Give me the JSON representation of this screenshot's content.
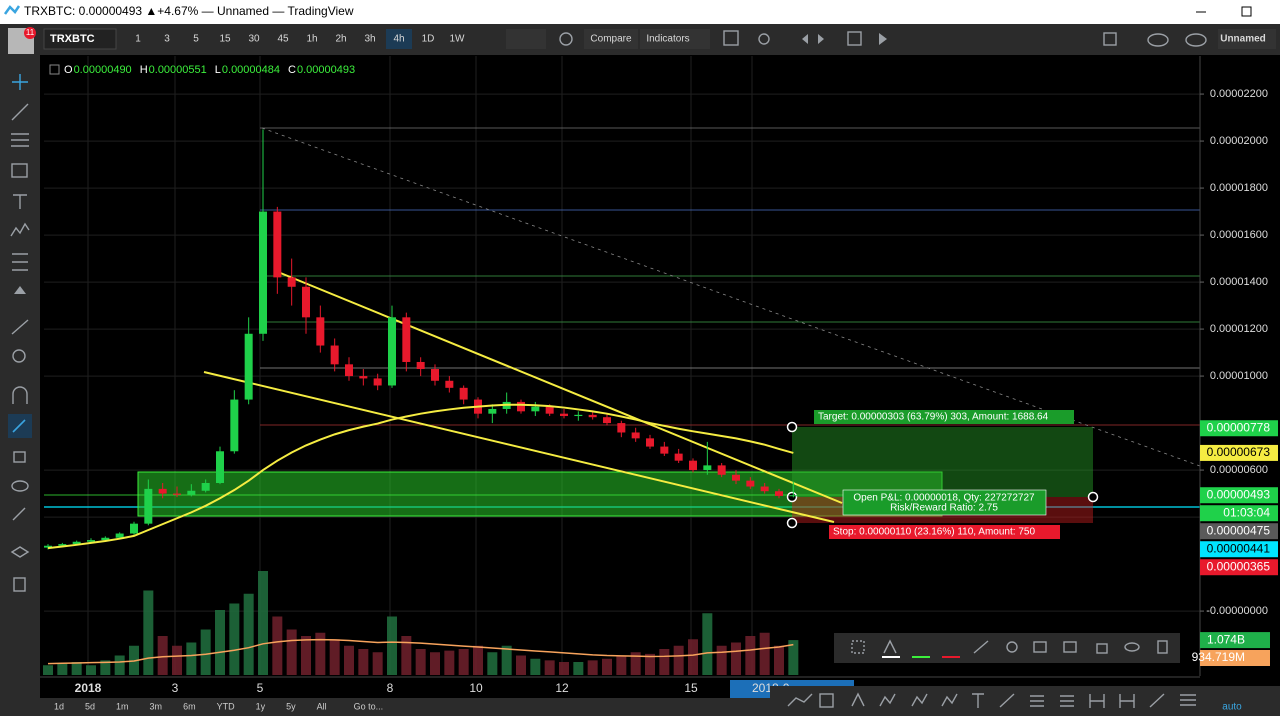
{
  "window": {
    "title": "TRXBTC: 0.00000493 ▲+4.67% — Unnamed — TradingView"
  },
  "toolbar": {
    "badge": "11",
    "symbol": "TRXBTC",
    "intervals": [
      "1",
      "3",
      "5",
      "15",
      "30",
      "45",
      "1h",
      "2h",
      "3h",
      "4h",
      "1D",
      "1W"
    ],
    "compare": "Compare",
    "indicators": "Indicators",
    "layout_name": "Unnamed"
  },
  "chart_data": {
    "type": "candlestick",
    "legend": [
      {
        "name": "O",
        "value": 4.9e-06,
        "label": "0.00000490"
      },
      {
        "name": "H",
        "value": 5.51e-06,
        "label": "0.00000551"
      },
      {
        "name": "L",
        "value": 4.84e-06,
        "label": "0.00000484"
      },
      {
        "name": "C",
        "value": 4.93e-06,
        "label": "0.00000493"
      }
    ],
    "up_color": "#1fd14a",
    "down_color": "#e8192c",
    "ylim": [
      -2.72e-06,
      2.362e-05
    ],
    "yticks": [
      {
        "value": 2.2e-05,
        "label": "0.00002200"
      },
      {
        "value": 2e-05,
        "label": "0.00002000"
      },
      {
        "value": 1.8e-05,
        "label": "0.00001800"
      },
      {
        "value": 1.6e-05,
        "label": "0.00001600"
      },
      {
        "value": 1.4e-05,
        "label": "0.00001400"
      },
      {
        "value": 1.2e-05,
        "label": "0.00001200"
      },
      {
        "value": 1e-05,
        "label": "0.00001000"
      },
      {
        "value": 6e-06,
        "label": "0.00000600"
      },
      {
        "value": 4e-06,
        "label": "0.0"
      },
      {
        "value": 0,
        "label": "-0.00000000"
      }
    ],
    "grid": true,
    "xticks": [
      "2018",
      "3",
      "5",
      "8",
      "10",
      "12",
      "15",
      "2018-0"
    ],
    "ohlc": [
      [
        2.7e-06,
        2.85e-06,
        2.62e-06,
        2.78e-06
      ],
      [
        2.78e-06,
        2.9e-06,
        2.72e-06,
        2.85e-06
      ],
      [
        2.85e-06,
        3e-06,
        2.8e-06,
        2.95e-06
      ],
      [
        2.95e-06,
        3.1e-06,
        2.88e-06,
        3.02e-06
      ],
      [
        3.02e-06,
        3.18e-06,
        2.96e-06,
        3.12e-06
      ],
      [
        3.12e-06,
        3.35e-06,
        3.05e-06,
        3.3e-06
      ],
      [
        3.3e-06,
        3.8e-06,
        3.25e-06,
        3.72e-06
      ],
      [
        3.72e-06,
        5.6e-06,
        3.65e-06,
        5.2e-06
      ],
      [
        5.2e-06,
        5.45e-06,
        4.8e-06,
        5e-06
      ],
      [
        5e-06,
        5.3e-06,
        4.85e-06,
        4.95e-06
      ],
      [
        4.95e-06,
        5.4e-06,
        4.88e-06,
        5.12e-06
      ],
      [
        5.12e-06,
        5.6e-06,
        5.05e-06,
        5.45e-06
      ],
      [
        5.45e-06,
        7e-06,
        5.4e-06,
        6.8e-06
      ],
      [
        6.8e-06,
        9.4e-06,
        6.7e-06,
        9e-06
      ],
      [
        9e-06,
        1.25e-05,
        8.8e-06,
        1.18e-05
      ],
      [
        1.18e-05,
        2.05e-05,
        1.15e-05,
        1.7e-05
      ],
      [
        1.7e-05,
        1.72e-05,
        1.35e-05,
        1.42e-05
      ],
      [
        1.42e-05,
        1.5e-05,
        1.3e-05,
        1.38e-05
      ],
      [
        1.38e-05,
        1.42e-05,
        1.18e-05,
        1.25e-05
      ],
      [
        1.25e-05,
        1.3e-05,
        1.1e-05,
        1.13e-05
      ],
      [
        1.13e-05,
        1.16e-05,
        1.02e-05,
        1.05e-05
      ],
      [
        1.05e-05,
        1.08e-05,
        9.8e-06,
        1e-05
      ],
      [
        1e-05,
        1.03e-05,
        9.6e-06,
        9.9e-06
      ],
      [
        9.9e-06,
        1.01e-05,
        9.4e-06,
        9.6e-06
      ],
      [
        9.6e-06,
        1.3e-05,
        9.5e-06,
        1.25e-05
      ],
      [
        1.25e-05,
        1.27e-05,
        1.02e-05,
        1.06e-05
      ],
      [
        1.06e-05,
        1.08e-05,
        1e-05,
        1.03e-05
      ],
      [
        1.03e-05,
        1.05e-05,
        9.6e-06,
        9.8e-06
      ],
      [
        9.8e-06,
        1e-05,
        9.3e-06,
        9.5e-06
      ],
      [
        9.5e-06,
        9.6e-06,
        8.8e-06,
        9e-06
      ],
      [
        9e-06,
        9.1e-06,
        8.2e-06,
        8.4e-06
      ],
      [
        8.4e-06,
        8.8e-06,
        8e-06,
        8.6e-06
      ],
      [
        8.6e-06,
        9.3e-06,
        8.4e-06,
        8.9e-06
      ],
      [
        8.9e-06,
        9e-06,
        8.4e-06,
        8.5e-06
      ],
      [
        8.5e-06,
        8.9e-06,
        8.3e-06,
        8.7e-06
      ],
      [
        8.7e-06,
        8.8e-06,
        8.3e-06,
        8.4e-06
      ],
      [
        8.4e-06,
        8.6e-06,
        8.2e-06,
        8.3e-06
      ],
      [
        8.3e-06,
        8.5e-06,
        8.1e-06,
        8.35e-06
      ],
      [
        8.35e-06,
        8.5e-06,
        8.15e-06,
        8.25e-06
      ],
      [
        8.25e-06,
        8.4e-06,
        7.9e-06,
        8e-06
      ],
      [
        8e-06,
        8.1e-06,
        7.4e-06,
        7.6e-06
      ],
      [
        7.6e-06,
        7.8e-06,
        7.2e-06,
        7.35e-06
      ],
      [
        7.35e-06,
        7.5e-06,
        6.9e-06,
        7e-06
      ],
      [
        7e-06,
        7.2e-06,
        6.6e-06,
        6.7e-06
      ],
      [
        6.7e-06,
        6.9e-06,
        6.3e-06,
        6.4e-06
      ],
      [
        6.4e-06,
        6.5e-06,
        5.9e-06,
        6e-06
      ],
      [
        6e-06,
        7.2e-06,
        5.8e-06,
        6.2e-06
      ],
      [
        6.2e-06,
        6.3e-06,
        5.7e-06,
        5.8e-06
      ],
      [
        5.8e-06,
        6e-06,
        5.4e-06,
        5.55e-06
      ],
      [
        5.55e-06,
        5.7e-06,
        5.2e-06,
        5.3e-06
      ],
      [
        5.3e-06,
        5.45e-06,
        5e-06,
        5.1e-06
      ],
      [
        5.1e-06,
        5.2e-06,
        4.8e-06,
        4.9e-06
      ],
      [
        4.9e-06,
        5.51e-06,
        4.84e-06,
        4.93e-06
      ]
    ],
    "ma": {
      "color": "#f5ec42",
      "values": [
        2.68e-06,
        2.75e-06,
        2.82e-06,
        2.9e-06,
        2.98e-06,
        3.08e-06,
        3.2e-06,
        3.45e-06,
        3.7e-06,
        3.95e-06,
        4.2e-06,
        4.48e-06,
        4.8e-06,
        5.15e-06,
        5.55e-06,
        6e-06,
        6.4e-06,
        6.75e-06,
        7.05e-06,
        7.3e-06,
        7.52e-06,
        7.7e-06,
        7.85e-06,
        7.98e-06,
        8.15e-06,
        8.28e-06,
        8.4e-06,
        8.5e-06,
        8.58e-06,
        8.65e-06,
        8.7e-06,
        8.75e-06,
        8.78e-06,
        8.78e-06,
        8.76e-06,
        8.72e-06,
        8.66e-06,
        8.58e-06,
        8.5e-06,
        8.4e-06,
        8.28e-06,
        8.15e-06,
        8e-06,
        7.88e-06,
        7.76e-06,
        7.65e-06,
        7.55e-06,
        7.45e-06,
        7.35e-06,
        7.22e-06,
        7.08e-06,
        6.9e-06,
        6.73e-06
      ]
    },
    "volume": {
      "vlim": [
        0,
        4000
      ],
      "values": [
        300,
        350,
        400,
        300,
        450,
        600,
        900,
        2600,
        1200,
        900,
        1000,
        1400,
        2000,
        2200,
        2500,
        3200,
        1800,
        1400,
        1200,
        1300,
        1100,
        900,
        800,
        700,
        1800,
        1200,
        800,
        700,
        750,
        800,
        900,
        700,
        900,
        600,
        500,
        450,
        400,
        400,
        450,
        500,
        600,
        700,
        650,
        800,
        900,
        1100,
        1900,
        900,
        1000,
        1200,
        1300,
        900,
        1074
      ],
      "ma_color": "#f7a35c",
      "ma": [
        350,
        360,
        370,
        380,
        390,
        400,
        430,
        520,
        560,
        580,
        600,
        640,
        700,
        760,
        840,
        960,
        1020,
        1060,
        1080,
        1090,
        1080,
        1060,
        1030,
        1000,
        1010,
        1000,
        980,
        950,
        920,
        890,
        860,
        830,
        800,
        770,
        740,
        710,
        680,
        650,
        620,
        600,
        590,
        580,
        570,
        575,
        590,
        610,
        680,
        700,
        730,
        770,
        820,
        860,
        934.719
      ],
      "labels": [
        {
          "value": 1074,
          "label": "1.074B",
          "color": "#1fb04a"
        },
        {
          "value": 934.719,
          "label": "934.719M",
          "color": "#f7a35c"
        }
      ]
    },
    "price_labels": [
      {
        "value": 7.78e-06,
        "label": "0.00000778",
        "color": "#1fd14a"
      },
      {
        "value": 6.73e-06,
        "label": "0.00000673",
        "color": "#f5ec42"
      },
      {
        "value": 4.93e-06,
        "label": "0.00000493",
        "color": "#1fd14a"
      },
      {
        "value": 4.75e-06,
        "label": "0.00000475",
        "color": "#5a5a5a"
      },
      {
        "value": 4.41e-06,
        "label": "0.00000441",
        "color": "#00e5ff"
      },
      {
        "value": 3.65e-06,
        "label": "0.00000365",
        "color": "#e8192c"
      }
    ],
    "countdown": "01:03:04",
    "annotations": {
      "target": "Target: 0.00000303 (63.79%) 303, Amount: 1688.64",
      "open_pnl": "Open P&L: 0.00000018, Qty: 227272727",
      "risk_reward": "Risk/Reward Ratio: 2.75",
      "stop": "Stop: 0.00000110 (23.16%) 110, Amount: 750"
    }
  },
  "bottom_bar": {
    "ranges": [
      "1d",
      "5d",
      "1m",
      "3m",
      "6m",
      "YTD",
      "1y",
      "5y",
      "All"
    ],
    "goto": "Go to...",
    "scale": "auto"
  }
}
